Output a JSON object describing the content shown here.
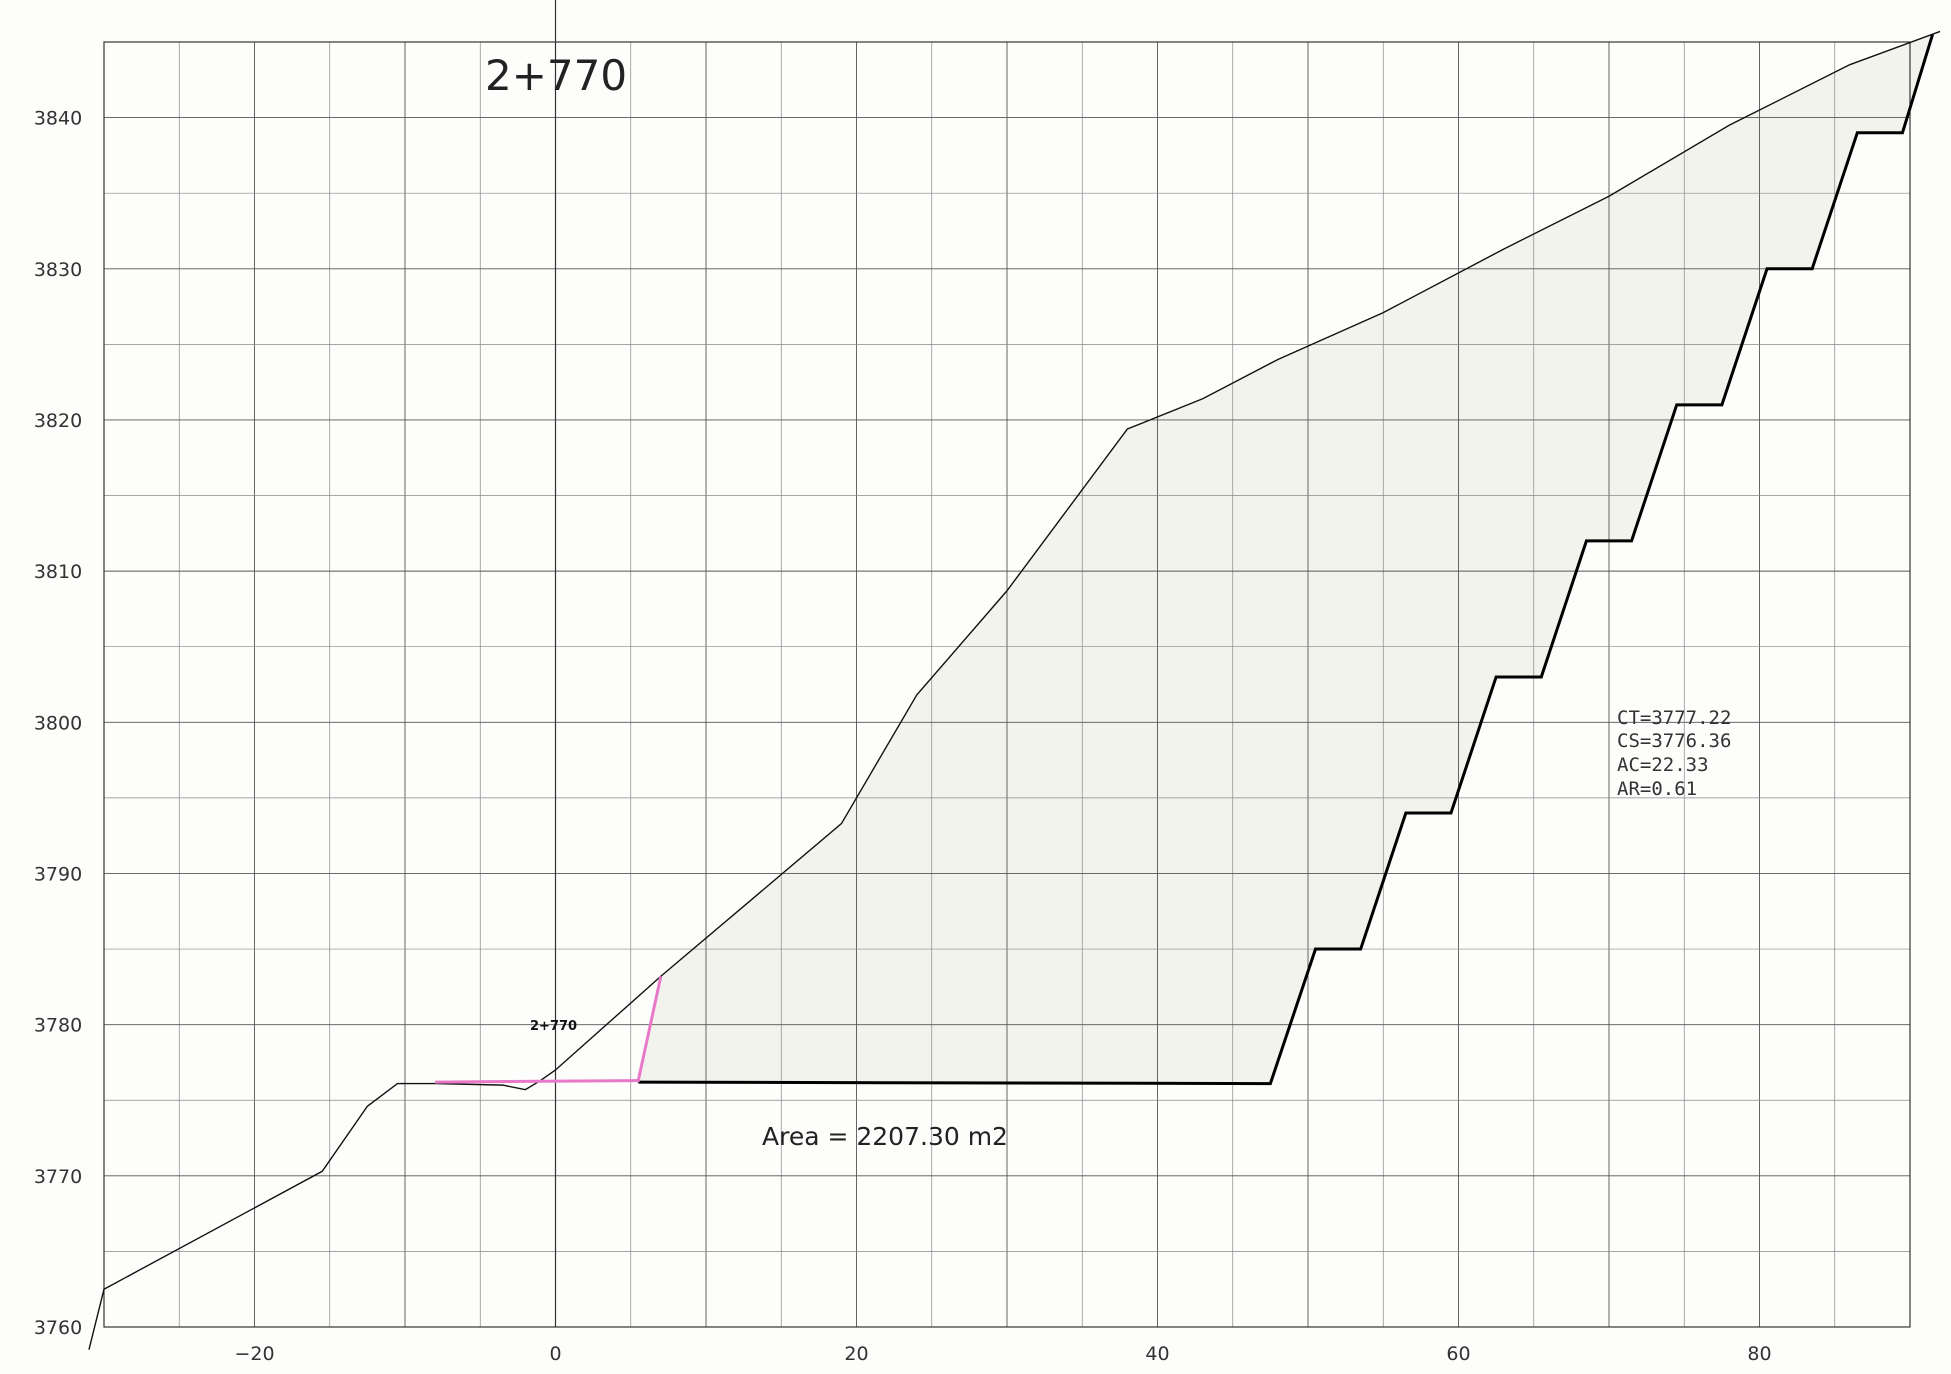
{
  "title": "2+770",
  "station_marker": "2+770",
  "area_label": "Area  =  2207.30  m2",
  "info": [
    "CT=3777.22",
    "CS=3776.36",
    "AC=22.33",
    "AR=0.61"
  ],
  "colors": {
    "ground": "#111111",
    "design": "#000000",
    "pink": "#e879c8",
    "grid": "#555555",
    "fill": "#f3f3ee"
  },
  "chart_data": {
    "type": "line",
    "title": "2+770",
    "xlabel": "",
    "ylabel": "",
    "xlim": [
      -30,
      90
    ],
    "ylim": [
      3760,
      3845
    ],
    "x_ticks": [
      -20,
      0,
      20,
      40,
      60,
      80
    ],
    "y_ticks": [
      3760,
      3770,
      3780,
      3790,
      3800,
      3810,
      3820,
      3830,
      3840
    ],
    "grid": true,
    "series": [
      {
        "role": "terrain",
        "x": [
          -31,
          -30,
          -15.5,
          -12.5,
          -10.5,
          -8,
          -3.5,
          -2,
          -1,
          0,
          7,
          19,
          24,
          30,
          38,
          43,
          48,
          55,
          63,
          70,
          78,
          86,
          92
        ],
        "y": [
          3758.5,
          3762.5,
          3770.3,
          3774.6,
          3776.1,
          3776.1,
          3776.0,
          3775.7,
          3776.3,
          3777.0,
          3783.2,
          3793.3,
          3801.8,
          3808.7,
          3819.4,
          3821.4,
          3824.0,
          3827.1,
          3831.3,
          3834.8,
          3839.5,
          3843.5,
          3845.7
        ]
      },
      {
        "role": "design",
        "x": [
          5.5,
          47.5,
          50.5,
          53.5,
          56.5,
          59.5,
          62.5,
          65.5,
          68.5,
          71.5,
          74.5,
          77.5,
          80.5,
          83.5,
          86.5,
          89.5,
          91.5
        ],
        "y": [
          3776.2,
          3776.1,
          3785.0,
          3785.0,
          3794.0,
          3794.0,
          3803.0,
          3803.0,
          3812.0,
          3812.0,
          3821.0,
          3821.0,
          3830.0,
          3830.0,
          3839.0,
          3839.0,
          3845.5
        ]
      },
      {
        "role": "pink",
        "x": [
          -8,
          5.5,
          7
        ],
        "y": [
          3776.2,
          3776.3,
          3783.2
        ]
      }
    ]
  }
}
